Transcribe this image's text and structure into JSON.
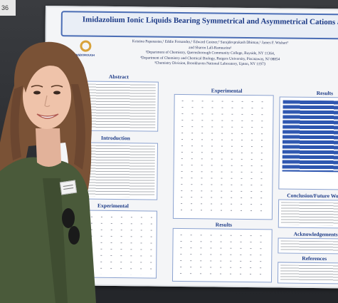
{
  "photo": {
    "description_tag": "student-presenting-poster",
    "corner_tag_text": "36"
  },
  "poster": {
    "title": "Imidazolium Ionic Liquids Bearing Symmetrical and Asymmetrical Cations and Anions",
    "logo_text": "QUEENSBOROUGH",
    "authors": [
      "Kristina Papanastas,¹ Eddie Fernandez,¹ Edward Castner,² Surajdevprakash Dhiman,¹ James F. Wishart³",
      "and Sharon Lall-Ramnarine¹",
      "¹Department of Chemistry, Queensborough Community College, Bayside, NY 11364,",
      "²Department of Chemistry and Chemical Biology, Rutgers University, Piscataway, NJ 08854",
      "³Chemistry Division, Brookhaven National Laboratory, Upton, NY 11973"
    ],
    "sections": {
      "abstract": "Abstract",
      "introduction": "Introduction",
      "experimental_left": "Experimental",
      "experimental_center": "Experimental",
      "results_center": "Results",
      "results_right": "Results",
      "conclusion": "Conclusion/Future Work",
      "acknowledgements": "Acknowledgements",
      "references": "References"
    }
  },
  "colors": {
    "poster_blue": "#1d3b87",
    "poster_border": "#4a6db5",
    "shirt_green": "#4a5a3a",
    "hair_brown": "#7a5236"
  }
}
